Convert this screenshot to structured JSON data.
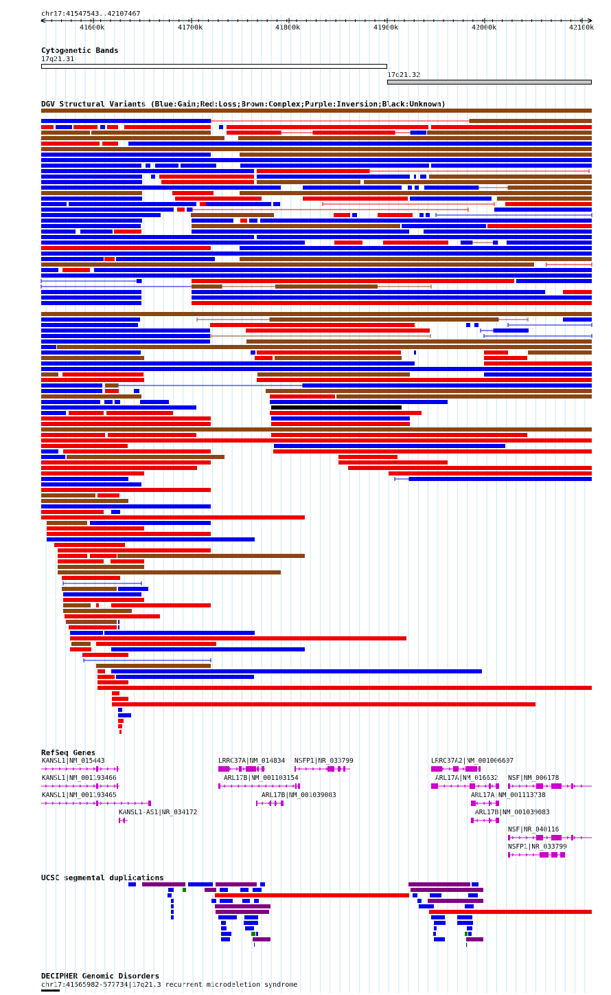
{
  "position": "chr17:41547543..42107467",
  "ruler": {
    "ticks": [
      "41600k",
      "41700k",
      "41800k",
      "41900k",
      "42000k",
      "42100k"
    ]
  },
  "cyto": {
    "title": "Cytogenetic Bands",
    "bands": [
      {
        "name": "17q21.31",
        "start": 41547543,
        "end": 41900000,
        "stain": "white"
      },
      {
        "name": "17q21.32",
        "start": 41900000,
        "end": 42107467,
        "stain": "grey"
      }
    ]
  },
  "dgv": {
    "title": "DGV Structural Variants (Blue:Gain;Red:Loss;Brown:Complex;Purple:Inversion;Black:Unknown)",
    "colors": {
      "gain": "#0000ee",
      "loss": "#ee0000",
      "complex": "#8b4513",
      "inversion": "#800080",
      "unknown": "#000000"
    }
  },
  "refseq": {
    "title": "RefSeq Genes",
    "color": "#cc00cc",
    "genes": [
      {
        "label": "KANSL1|NM_015443"
      },
      {
        "label": "KANSL1|NM_001193466"
      },
      {
        "label": "KANSL1|NM_001193465"
      },
      {
        "label": "KANSL1-AS1|NR_034172"
      },
      {
        "label": "LRRC37A|NM_014834"
      },
      {
        "label": "NSFP1|NR_033799"
      },
      {
        "label": "ARL17B|NM_001103154"
      },
      {
        "label": "ARL17B|NM_001039083"
      },
      {
        "label": "LRRC37A2|NM_001006607"
      },
      {
        "label": "ARL17A|NM_016632"
      },
      {
        "label": "NSF|NM_006178"
      },
      {
        "label": "ARL17A|NM_001113738"
      },
      {
        "label": "ARL17B|NM_001039083"
      },
      {
        "label": "NSF|NR_040116"
      },
      {
        "label": "NSFP1|NR_033799"
      }
    ]
  },
  "segdup": {
    "title": "UCSC segmental duplications",
    "colors": {
      "purple": "#800080",
      "blue": "#0000ee",
      "red": "#ee0000",
      "green": "#008000"
    }
  },
  "decipher": {
    "title": "DECIPHER Genomic Disorders",
    "feature": "chr17:41565982-577734|17q21.3 recurrent microdeletion syndrome"
  }
}
